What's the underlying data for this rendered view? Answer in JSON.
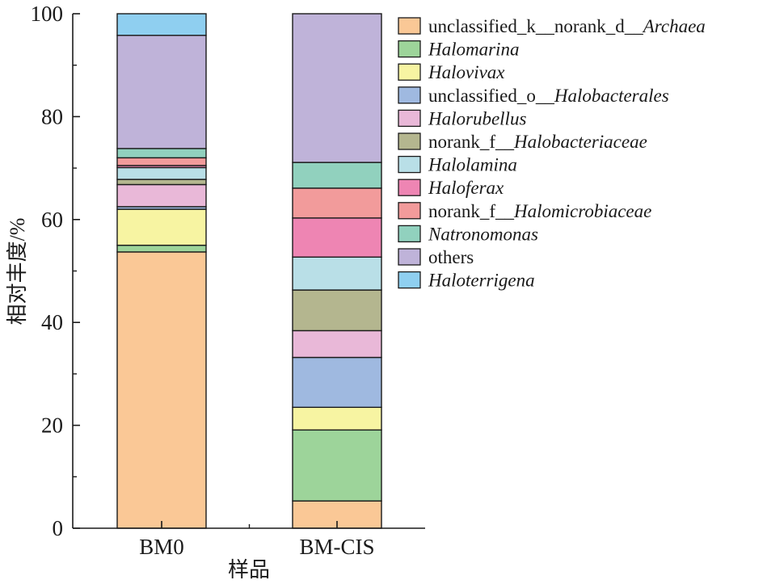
{
  "chart_data": {
    "type": "bar",
    "stacked": true,
    "xlabel": "样品",
    "ylabel": "相对丰度/%",
    "ylim": [
      0,
      100
    ],
    "yticks": [
      0,
      20,
      40,
      60,
      80,
      100
    ],
    "grid": false,
    "legend_position": "right",
    "categories": [
      "BM0",
      "BM-CIS"
    ],
    "series": [
      {
        "name_prefix": "unclassified_k__norank_d__",
        "name_italic": "Archaea",
        "color": "#FAC896",
        "values": [
          53.7,
          5.3
        ]
      },
      {
        "name_prefix": "",
        "name_italic": "Halomarina",
        "color": "#9DD49A",
        "values": [
          1.3,
          13.8
        ]
      },
      {
        "name_prefix": "",
        "name_italic": "Halovivax",
        "color": "#F7F4A2",
        "values": [
          7.0,
          4.4
        ]
      },
      {
        "name_prefix": "unclassified_o__",
        "name_italic": "Halobacterales",
        "color": "#9FB9E0",
        "values": [
          0.5,
          9.7
        ]
      },
      {
        "name_prefix": "",
        "name_italic": "Halorubellus",
        "color": "#E9B8D8",
        "values": [
          4.3,
          5.2
        ]
      },
      {
        "name_prefix": "norank_f__",
        "name_italic": "Halobacteriaceae",
        "color": "#B4B68F",
        "values": [
          1.0,
          7.9
        ]
      },
      {
        "name_prefix": "",
        "name_italic": "Halolamina",
        "color": "#B9DFE7",
        "values": [
          2.3,
          6.4
        ]
      },
      {
        "name_prefix": "",
        "name_italic": "Haloferax",
        "color": "#EE85B3",
        "values": [
          0.4,
          7.6
        ]
      },
      {
        "name_prefix": "norank_f__",
        "name_italic": "Halomicrobiaceae",
        "color": "#F29B9B",
        "values": [
          1.5,
          5.8
        ]
      },
      {
        "name_prefix": "",
        "name_italic": "Natronomonas",
        "color": "#91D1BE",
        "values": [
          1.8,
          5.0
        ]
      },
      {
        "name_prefix": "",
        "name_italic": "",
        "name_plain": "others",
        "color": "#BFB3D9",
        "values": [
          22.0,
          28.9
        ]
      },
      {
        "name_prefix": "",
        "name_italic": "Haloterrigena",
        "color": "#8FCFF0",
        "values": [
          4.2,
          0.0
        ]
      }
    ]
  }
}
